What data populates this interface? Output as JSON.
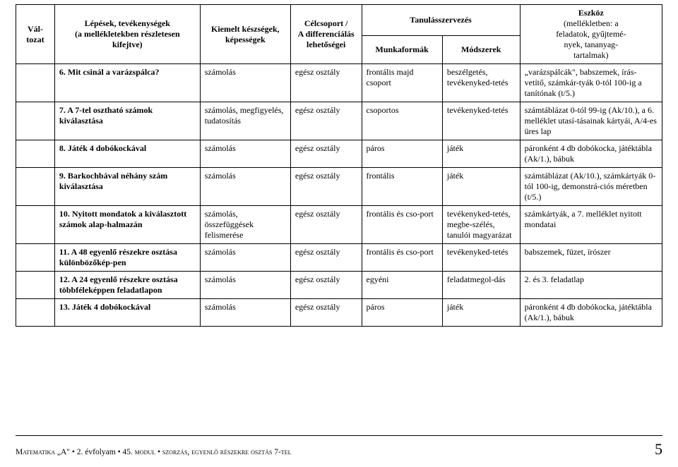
{
  "header": {
    "col1": "Vál-\ntozat",
    "col2": "Lépések, tevékenységek\n(a mellékletekben részletesen kifejtve)",
    "col3": "Kiemelt készségek,\nképességek",
    "col4": "Célcsoport /\nA differenciálás\nlehetőségei",
    "col5_group": "Tanulásszervezés",
    "col5a": "Munkaformák",
    "col5b": "Módszerek",
    "col6": "Eszköz\n(mellékletben: a\nfeladatok, gyűjtemé-\nnyek, tananyag-\ntartalmak)"
  },
  "rows": [
    {
      "num": "6.",
      "step": "Mit csinál a varázspálca?",
      "skill": "számolás",
      "target": "egész osztály",
      "form": "frontális majd csoport",
      "method": "beszélgetés, tevékenyked-tetés",
      "tool": "„varázspálcák\", babszemek, írás-vetítő, számkár-tyák 0-tól 100-ig a tanítónak (t/5.)"
    },
    {
      "num": "7.",
      "step": "A 7-tel osztható számok kiválasztása",
      "skill": "számolás, megfigyelés, tudatosítás",
      "target": "egész osztály",
      "form": "csoportos",
      "method": "tevékenyked-tetés",
      "tool": "számtáblázat 0-tól 99-ig (Ak/10.), a 6. melléklet utasí-tásainak kártyái, A/4-es üres lap"
    },
    {
      "num": "8.",
      "step": "Játék 4 dobókockával",
      "skill": "számolás",
      "target": "egész osztály",
      "form": "páros",
      "method": "játék",
      "tool": "páronként 4 db dobókocka, játéktábla (Ak/1.), bábuk"
    },
    {
      "num": "9.",
      "step": "Barkochbával néhány szám kiválasztása",
      "skill": "számolás",
      "target": "egész osztály",
      "form": "frontális",
      "method": "játék",
      "tool": "számtáblázat (Ak/10.), számkártyák 0-tól 100-ig, demonstrá-ciós méretben (t/5.)"
    },
    {
      "num": "10.",
      "step": "Nyitott mondatok a kiválasztott számok alap-halmazán",
      "skill": "számolás, összefüggések felismerése",
      "target": "egész osztály",
      "form": "frontális és cso-port",
      "method": "tevékenyked-tetés, megbe-szélés, tanulói magyarázat",
      "tool": "számkártyák, a 7. melléklet nyitott mondatai"
    },
    {
      "num": "11.",
      "step": "A 48 egyenlő részekre osztása különbözőkép-pen",
      "skill": "számolás",
      "target": "egész osztály",
      "form": "frontális és cso-port",
      "method": "tevékenyked-tetés",
      "tool": "babszemek, füzet, írószer"
    },
    {
      "num": "12.",
      "step": "A 24 egyenlő részekre osztása többféleképpen feladatlapon",
      "skill": "számolás",
      "target": "egész osztály",
      "form": "egyéni",
      "method": "feladatmegol-dás",
      "tool": "2. és 3. feladatlap"
    },
    {
      "num": "13.",
      "step": "Játék 4 dobókockával",
      "skill": "számolás",
      "target": "egész osztály",
      "form": "páros",
      "method": "játék",
      "tool": "páronként 4 db dobókocka, játéktábla (Ak/1.), bábuk"
    }
  ],
  "footer": {
    "left_a": "Matematika „A\" ",
    "left_b": "• 2. évfolyam • 45. ",
    "left_c": "modul",
    "left_d": " • ",
    "left_e": "szorzás, egyenlő részekre osztás 7-tel",
    "page": "5"
  }
}
